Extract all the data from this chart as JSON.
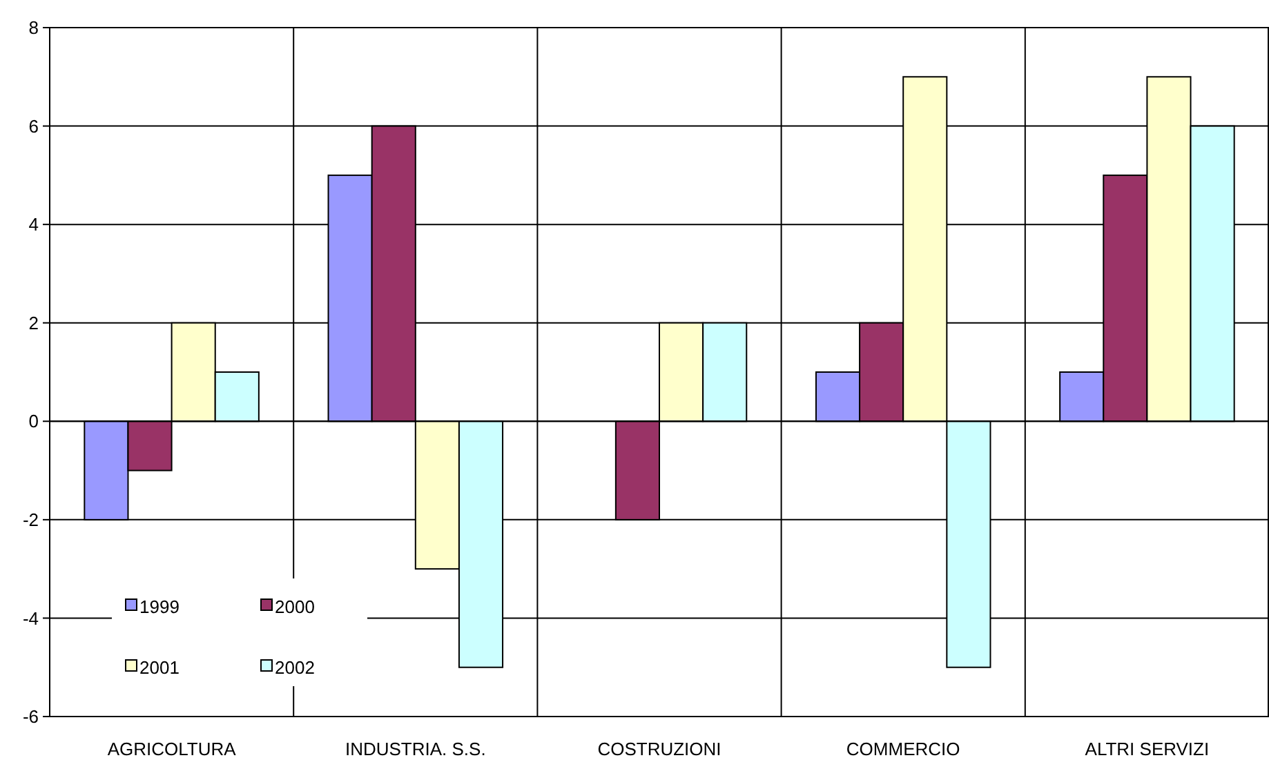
{
  "chart_data": {
    "type": "bar",
    "categories": [
      "AGRICOLTURA",
      "INDUSTRIA. S.S.",
      "COSTRUZIONI",
      "COMMERCIO",
      "ALTRI SERVIZI"
    ],
    "series": [
      {
        "name": "1999",
        "color": "#9999ff",
        "values": [
          -2,
          5,
          0,
          1,
          1
        ]
      },
      {
        "name": "2000",
        "color": "#993366",
        "values": [
          -1,
          6,
          -2,
          2,
          5
        ]
      },
      {
        "name": "2001",
        "color": "#ffffcc",
        "values": [
          2,
          -3,
          2,
          7,
          7
        ]
      },
      {
        "name": "2002",
        "color": "#ccffff",
        "values": [
          1,
          -5,
          2,
          -5,
          6
        ]
      }
    ],
    "ylim": [
      -6,
      8
    ],
    "yticks": [
      -6,
      -4,
      -2,
      0,
      2,
      4,
      6,
      8
    ],
    "grid": true,
    "legend": "bottom left"
  }
}
